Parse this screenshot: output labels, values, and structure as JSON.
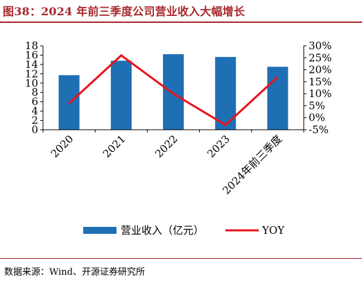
{
  "figure": {
    "title": "图38：2024 年前三季度公司营业收入大幅增长",
    "source": "数据来源：Wind、开源证券研究所"
  },
  "chart_data": {
    "type": "bar",
    "categories": [
      "2020",
      "2021",
      "2022",
      "2023",
      "2024年前三季度"
    ],
    "series": [
      {
        "name": "营业收入（亿元）",
        "type": "bar",
        "axis": "left",
        "color": "#1f6fb4",
        "values": [
          11.7,
          14.8,
          16.2,
          15.6,
          13.5
        ]
      },
      {
        "name": "YOY",
        "type": "line",
        "axis": "right",
        "color": "#e8141c",
        "values": [
          0.06,
          0.26,
          0.1,
          -0.03,
          0.17
        ]
      }
    ],
    "left_axis": {
      "ylim": [
        0,
        18
      ],
      "ticks": [
        "0",
        "2",
        "4",
        "6",
        "8",
        "10",
        "12",
        "14",
        "16",
        "18"
      ]
    },
    "right_axis": {
      "ylim": [
        -0.05,
        0.3
      ],
      "ticks": [
        "-5%",
        "0%",
        "5%",
        "10%",
        "15%",
        "20%",
        "25%",
        "30%"
      ]
    },
    "grid": false,
    "legend": "bottom"
  }
}
